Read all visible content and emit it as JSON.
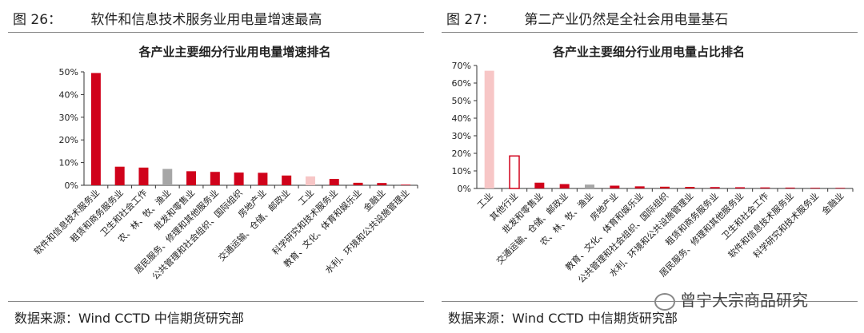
{
  "panels": [
    {
      "figure_number": "图 26：",
      "figure_title": "软件和信息技术服务业用电量增速最高",
      "source": "数据来源：Wind CCTD 中信期货研究部"
    },
    {
      "figure_number": "图 27：",
      "figure_title": "第二产业仍然是全社会用电量基石",
      "source": "数据来源：Wind CCTD 中信期货研究部"
    }
  ],
  "watermark": "曾宁大宗商品研究",
  "colors": {
    "red": "#d0021b",
    "gray": "#a6a6a6",
    "pink": "#f7c6c6",
    "axis": "#333333"
  },
  "chart_data": [
    {
      "type": "bar",
      "title": "各产业主要细分行业用电量增速排名",
      "ylim": [
        0,
        50
      ],
      "yticks": [
        "0%",
        "10%",
        "20%",
        "30%",
        "40%",
        "50%"
      ],
      "categories": [
        "软件和信息技术服务业",
        "租赁和商务服务业",
        "卫生和社会工作",
        "农、林、牧、渔业",
        "批发和零售业",
        "居民服务、修理和其他服务业",
        "公共管理和社会组织、国际组织",
        "房地产业",
        "交通运输、仓储、邮政业",
        "工业",
        "科学研究和技术服务业",
        "教育、文化、体育和娱乐业",
        "金融业",
        "水利、环境和公共设施管理业"
      ],
      "values": [
        49.5,
        8.2,
        7.8,
        7.2,
        6.2,
        5.9,
        5.6,
        5.5,
        4.3,
        3.9,
        2.8,
        1.1,
        1.0,
        0.2
      ],
      "bar_styles": [
        "red",
        "red",
        "red",
        "gray",
        "red",
        "red",
        "red",
        "red",
        "red",
        "pink",
        "red",
        "red",
        "red",
        "red"
      ]
    },
    {
      "type": "bar",
      "title": "各产业主要细分行业用电量占比排名",
      "ylim": [
        0,
        70
      ],
      "yticks": [
        "0%",
        "10%",
        "20%",
        "30%",
        "40%",
        "50%",
        "60%",
        "70%"
      ],
      "categories": [
        "工业",
        "其他行业",
        "批发和零售业",
        "交通运输、仓储、邮政业",
        "农、林、牧、渔业",
        "房地产业",
        "教育、文化、体育和娱乐业",
        "公共管理和社会组织、国际组织",
        "水利、环境和公共设施管理业",
        "租赁和商务服务业",
        "居民服务、修理和其他服务业",
        "卫生和社会工作",
        "软件和信息技术服务业",
        "科学研究和技术服务业",
        "金融业"
      ],
      "values": [
        67.0,
        18.5,
        3.3,
        2.5,
        2.2,
        1.6,
        1.2,
        1.0,
        0.9,
        0.8,
        0.7,
        0.6,
        0.5,
        0.4,
        0.3
      ],
      "bar_styles": [
        "pink",
        "outline",
        "red",
        "red",
        "gray",
        "red",
        "red",
        "red",
        "red",
        "red",
        "red",
        "red",
        "red",
        "red",
        "red"
      ]
    }
  ]
}
